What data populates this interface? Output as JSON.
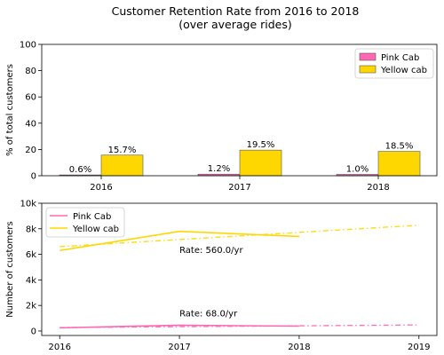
{
  "figure": {
    "title_line1": "Customer Retention Rate from 2016 to 2018",
    "title_line2": "(over average rides)"
  },
  "chart_data": [
    {
      "type": "bar",
      "categories": [
        "2016",
        "2017",
        "2018"
      ],
      "ylabel": "% of total customers",
      "ylim": [
        0,
        100
      ],
      "yticks": [
        0,
        20,
        40,
        60,
        80,
        100
      ],
      "legend_position": "top-right",
      "grid": false,
      "series": [
        {
          "name": "Pink Cab",
          "color": "#ff69b4",
          "values": [
            0.6,
            1.2,
            1.0
          ],
          "labels": [
            "0.6%",
            "1.2%",
            "1.0%"
          ]
        },
        {
          "name": "Yellow cab",
          "color": "#ffd700",
          "values": [
            15.7,
            19.5,
            18.5
          ],
          "labels": [
            "15.7%",
            "19.5%",
            "18.5%"
          ]
        }
      ]
    },
    {
      "type": "line",
      "ylabel": "Number of customers",
      "ylim": [
        0,
        10000
      ],
      "yticks": [
        0,
        2000,
        4000,
        6000,
        8000,
        10000
      ],
      "ytick_labels": [
        "0",
        "2k",
        "4k",
        "6k",
        "8k",
        "10k"
      ],
      "xticks": [
        "2016",
        "2017",
        "2018",
        "2019"
      ],
      "legend_position": "top-left",
      "grid": false,
      "series": [
        {
          "name": "Pink Cab",
          "color": "#ff69b4",
          "x": [
            2016,
            2017,
            2018
          ],
          "values": [
            250,
            450,
            380
          ]
        },
        {
          "name": "Yellow cab",
          "color": "#ffd700",
          "x": [
            2016,
            2017,
            2018
          ],
          "values": [
            6300,
            7800,
            7400
          ]
        }
      ],
      "trend_lines": [
        {
          "color": "#ff69b4",
          "x": [
            2016,
            2019
          ],
          "values": [
            270,
            474
          ]
        },
        {
          "color": "#ffd700",
          "x": [
            2016,
            2019
          ],
          "values": [
            6600,
            8280
          ]
        }
      ],
      "annotations": [
        {
          "text": "Rate: 560.0/yr",
          "x": 2017,
          "y": 6100
        },
        {
          "text": "Rate: 68.0/yr",
          "x": 2017,
          "y": 1150
        }
      ]
    }
  ]
}
